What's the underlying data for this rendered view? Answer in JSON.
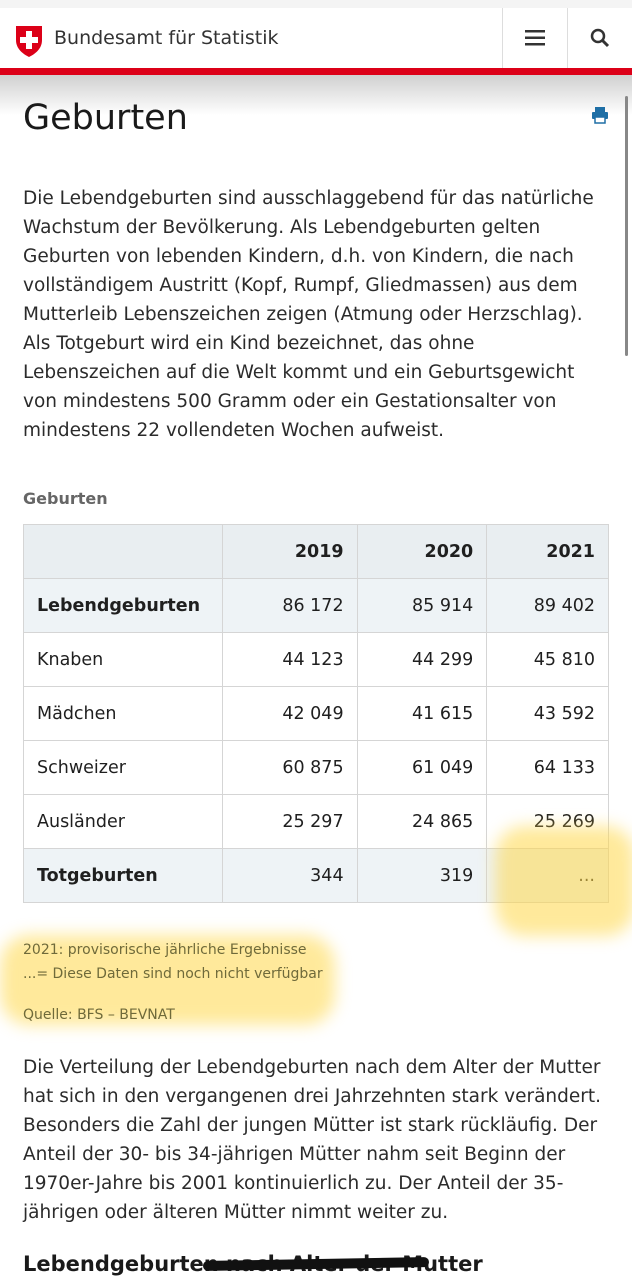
{
  "header": {
    "brand": "Bundesamt für Statistik",
    "icons": [
      "swiss-shield-icon",
      "menu-icon",
      "search-icon"
    ]
  },
  "page": {
    "title": "Geburten",
    "print_icon": "print-icon"
  },
  "intro": "Die Lebendgeburten sind ausschlaggebend für das natürliche Wachstum der Bevölkerung. Als Lebendgeburten gelten Geburten von lebenden Kindern, d.h. von Kindern, die nach vollständigem Austritt (Kopf, Rumpf, Gliedmassen) aus dem Mutterleib Lebenszeichen zeigen (Atmung oder Herzschlag). Als Totgeburt wird ein Kind bezeichnet, das ohne Lebenszeichen auf die Welt kommt und ein Geburtsgewicht von mindestens 500 Gramm oder ein Gestationsalter von mindestens 22 vollendeten Wochen aufweist.",
  "table": {
    "caption": "Geburten",
    "columns": [
      "",
      "2019",
      "2020",
      "2021"
    ],
    "rows": [
      {
        "label": "Lebendgeburten",
        "values": [
          "86 172",
          "85 914",
          "89 402"
        ],
        "bold": true
      },
      {
        "label": "Knaben",
        "values": [
          "44 123",
          "44 299",
          "45 810"
        ]
      },
      {
        "label": "Mädchen",
        "values": [
          "42 049",
          "41 615",
          "43 592"
        ]
      },
      {
        "label": "Schweizer",
        "values": [
          "60 875",
          "61 049",
          "64 133"
        ]
      },
      {
        "label": "Ausländer",
        "values": [
          "25 297",
          "24 865",
          "25 269"
        ]
      },
      {
        "label": "Totgeburten",
        "values": [
          "344",
          "319",
          "..."
        ],
        "bold": true
      }
    ]
  },
  "notes": {
    "provisional": "2021: provisorische jährliche Ergebnisse",
    "unavailable": "...= Diese Daten sind noch nicht verfügbar",
    "source": "Quelle: BFS – BEVNAT"
  },
  "paragraph2": "Die Verteilung der Lebendgeburten nach dem Alter der Mutter hat sich in den vergangenen drei Jahrzehnten stark verändert. Besonders die Zahl der jungen Mütter ist stark rückläufig. Der Anteil der 30- bis 34-jährigen Mütter nahm seit Beginn der 1970er-Jahre bis 2001 kontinuierlich zu. Der Anteil der 35-jährigen oder älteren Mütter nimmt weiter zu.",
  "section_heading": "Lebendgeburten nach Alter der Mutter",
  "colors": {
    "accent_red": "#dc0018",
    "highlight": "#ffd84a",
    "print_blue": "#1f6fa6"
  }
}
